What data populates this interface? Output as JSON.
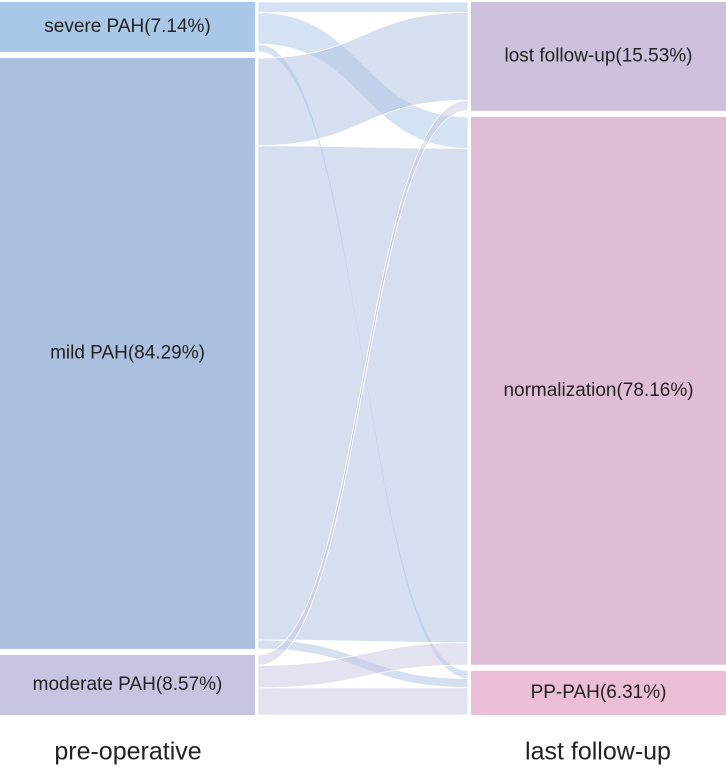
{
  "chart_data": {
    "type": "sankey",
    "columns": [
      {
        "name": "pre-operative",
        "values": [
          7.14,
          84.29,
          8.57
        ],
        "value_labels": [
          "severe PAH(7.14%)",
          "mild PAH(84.29%)",
          "moderate PAH(8.57%)"
        ],
        "colors": [
          "#a9c7e7",
          "#abbfdf",
          "#c6c5e1"
        ]
      },
      {
        "name": "last follow-up",
        "values": [
          15.53,
          78.16,
          6.31
        ],
        "value_labels": [
          "lost follow-up(15.53%)",
          "normalization(78.16%)",
          "PP-PAH(6.31%)"
        ],
        "colors": [
          "#ccc0dc",
          "#dfbdd6",
          "#ecbed5"
        ]
      }
    ],
    "flows": [
      [
        1.5,
        4.5,
        1.1
      ],
      [
        12.5,
        70.5,
        1.3
      ],
      [
        1.5,
        3.2,
        3.9
      ]
    ]
  }
}
